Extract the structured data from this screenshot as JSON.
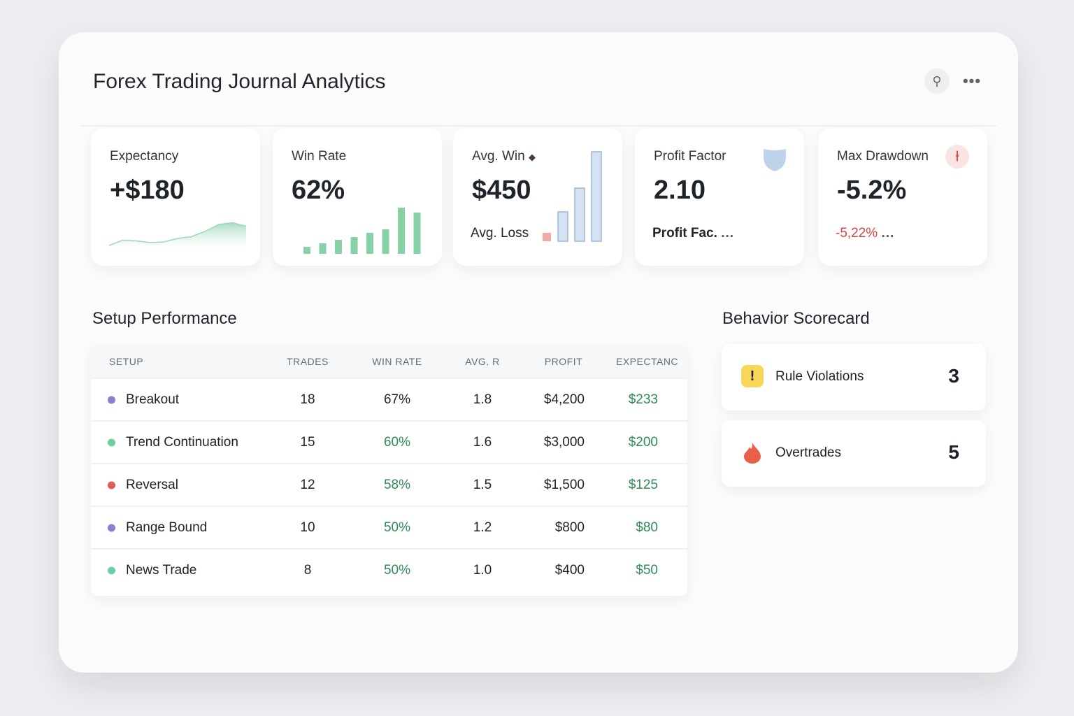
{
  "header": {
    "title": "Forex Trading Journal Analytics",
    "pin_icon": "pin-icon",
    "more_icon": "more-icon"
  },
  "kpis": {
    "expectancy": {
      "label": "Expectancy",
      "value": "+$180",
      "sparkline": [
        0.2,
        0.35,
        0.33,
        0.28,
        0.3,
        0.4,
        0.45,
        0.6,
        0.8,
        0.85,
        0.75
      ]
    },
    "win_rate": {
      "label": "Win Rate",
      "value": "62%",
      "bars": [
        10,
        15,
        20,
        24,
        30,
        35,
        66,
        59
      ]
    },
    "avg_win": {
      "label": "Avg. Win",
      "value": "$450",
      "sub": "Avg. Loss",
      "icon": "diamond-icon",
      "loss_bar": 12,
      "win_bars": [
        42,
        76,
        128
      ]
    },
    "profit_factor": {
      "label": "Profit Factor",
      "value": "2.10",
      "sub": "Profit Fac.",
      "icon": "shield-icon"
    },
    "max_drawdown": {
      "label": "Max Drawdown",
      "value": "-5.2%",
      "sub": "-5,22%",
      "icon": "pin-down-icon"
    }
  },
  "setup": {
    "title": "Setup Performance",
    "columns": [
      "SETUP",
      "TRADES",
      "WIN RATE",
      "AVG. R",
      "PROFIT",
      "EXPECTANC"
    ],
    "rows": [
      {
        "name": "Breakout",
        "trades": "18",
        "win_rate": "67%",
        "avg_r": "1.8",
        "profit": "$4,200",
        "expectancy": "$233",
        "color": "#8b7fd1"
      },
      {
        "name": "Trend Continuation",
        "trades": "15",
        "win_rate": "60%",
        "avg_r": "1.6",
        "profit": "$3,000",
        "expectancy": "$200",
        "color": "#6fcf9f"
      },
      {
        "name": "Reversal",
        "trades": "12",
        "win_rate": "58%",
        "avg_r": "1.5",
        "profit": "$1,500",
        "expectancy": "$125",
        "color": "#e05a5a"
      },
      {
        "name": "Range Bound",
        "trades": "10",
        "win_rate": "50%",
        "avg_r": "1.2",
        "profit": "$800",
        "expectancy": "$80",
        "color": "#8b7fd1"
      },
      {
        "name": "News Trade",
        "trades": "8",
        "win_rate": "50%",
        "avg_r": "1.0",
        "profit": "$400",
        "expectancy": "$50",
        "color": "#6fcf9f"
      }
    ]
  },
  "behavior": {
    "title": "Behavior Scorecard",
    "items": [
      {
        "label": "Rule Violations",
        "count": "3",
        "icon": "warning-icon"
      },
      {
        "label": "Overtrades",
        "count": "5",
        "icon": "fire-icon"
      }
    ]
  }
}
